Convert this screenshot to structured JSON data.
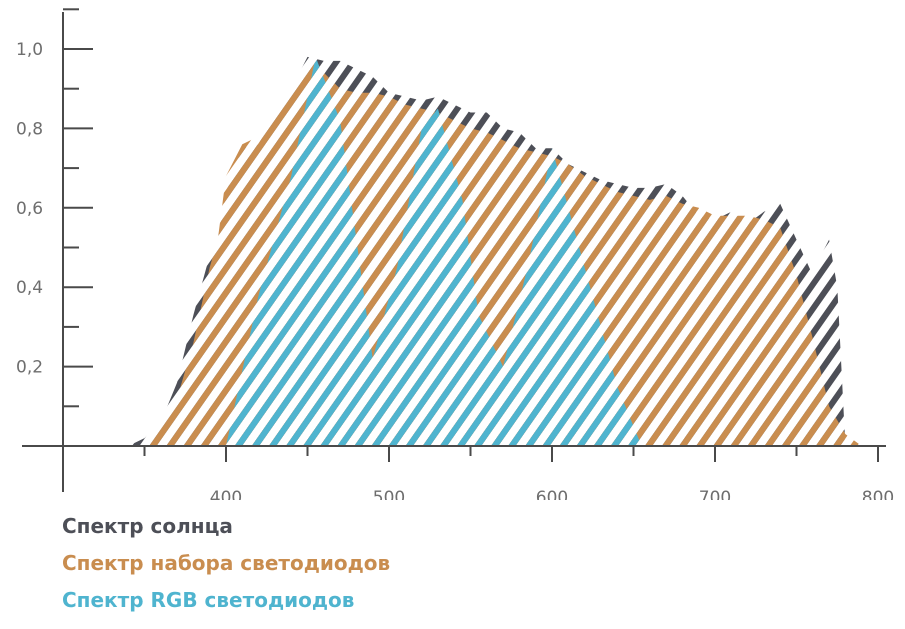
{
  "chart_data": {
    "type": "area",
    "title": "",
    "xlabel": "",
    "ylabel": "",
    "xlim": [
      300,
      810
    ],
    "ylim": [
      0,
      1.05
    ],
    "x_ticks": [
      {
        "value": 400,
        "label": "400"
      },
      {
        "value": 500,
        "label": "500"
      },
      {
        "value": 600,
        "label": "600"
      },
      {
        "value": 700,
        "label": "700"
      },
      {
        "value": 800,
        "label": "800"
      }
    ],
    "y_ticks": [
      {
        "value": 0.2,
        "label": "0,2"
      },
      {
        "value": 0.4,
        "label": "0,4"
      },
      {
        "value": 0.6,
        "label": "0,6"
      },
      {
        "value": 0.8,
        "label": "0,8"
      },
      {
        "value": 1.0,
        "label": "1,0"
      }
    ],
    "y_minor_ticks": [
      0.1,
      0.3,
      0.5,
      0.7,
      0.9,
      1.1
    ],
    "x_minor_ticks": [
      350,
      450,
      550,
      650,
      750
    ],
    "grid": false,
    "series": [
      {
        "name": "Спектр солнца",
        "color": "#4d4f57",
        "hatch": "hatched",
        "x": [
          340,
          350,
          360,
          370,
          380,
          390,
          395,
          400,
          410,
          420,
          430,
          440,
          450,
          460,
          470,
          480,
          490,
          500,
          510,
          520,
          530,
          540,
          550,
          560,
          570,
          580,
          590,
          600,
          610,
          620,
          630,
          640,
          650,
          660,
          670,
          680,
          690,
          700,
          710,
          720,
          730,
          740,
          750,
          760,
          765,
          770,
          775,
          780
        ],
        "y": [
          0.0,
          0.02,
          0.06,
          0.16,
          0.33,
          0.48,
          0.52,
          0.64,
          0.75,
          0.76,
          0.85,
          0.9,
          0.98,
          0.97,
          0.97,
          0.95,
          0.93,
          0.89,
          0.88,
          0.87,
          0.88,
          0.86,
          0.84,
          0.84,
          0.8,
          0.79,
          0.75,
          0.75,
          0.71,
          0.69,
          0.67,
          0.66,
          0.65,
          0.65,
          0.66,
          0.63,
          0.58,
          0.57,
          0.59,
          0.56,
          0.59,
          0.61,
          0.52,
          0.43,
          0.48,
          0.52,
          0.4,
          0.0
        ]
      },
      {
        "name": "Спектр набора светодиодов",
        "color": "#c98d4f",
        "hatch": "hatched",
        "x": [
          350,
          360,
          370,
          380,
          390,
          395,
          400,
          410,
          420,
          430,
          440,
          450,
          455,
          460,
          470,
          480,
          490,
          500,
          510,
          520,
          530,
          540,
          550,
          560,
          570,
          580,
          590,
          600,
          610,
          620,
          630,
          640,
          650,
          660,
          670,
          680,
          690,
          700,
          710,
          720,
          730,
          740,
          750,
          760,
          770,
          780,
          790
        ],
        "y": [
          0.0,
          0.05,
          0.12,
          0.26,
          0.45,
          0.52,
          0.68,
          0.76,
          0.78,
          0.84,
          0.88,
          0.96,
          0.97,
          0.94,
          0.9,
          0.89,
          0.89,
          0.88,
          0.86,
          0.85,
          0.84,
          0.82,
          0.8,
          0.79,
          0.77,
          0.75,
          0.74,
          0.73,
          0.71,
          0.68,
          0.66,
          0.64,
          0.63,
          0.62,
          0.63,
          0.61,
          0.6,
          0.58,
          0.58,
          0.58,
          0.57,
          0.55,
          0.43,
          0.27,
          0.1,
          0.03,
          0.0
        ]
      },
      {
        "name": "Спектр RGB светодиодов",
        "color": "#4fb4cf",
        "hatch": "hatched",
        "x": [
          400,
          420,
          440,
          455,
          470,
          490,
          505,
          520,
          530,
          545,
          555,
          570,
          585,
          600,
          620,
          640,
          655
        ],
        "y": [
          0.0,
          0.38,
          0.68,
          0.98,
          0.82,
          0.22,
          0.45,
          0.8,
          0.85,
          0.62,
          0.33,
          0.2,
          0.45,
          0.75,
          0.45,
          0.15,
          0.0
        ]
      }
    ],
    "legend_position": "bottom-left"
  },
  "legend": {
    "sun": "Спектр солнца",
    "led_set": "Спектр набора светодиодов",
    "rgb": "Спектр RGB светодиодов"
  }
}
